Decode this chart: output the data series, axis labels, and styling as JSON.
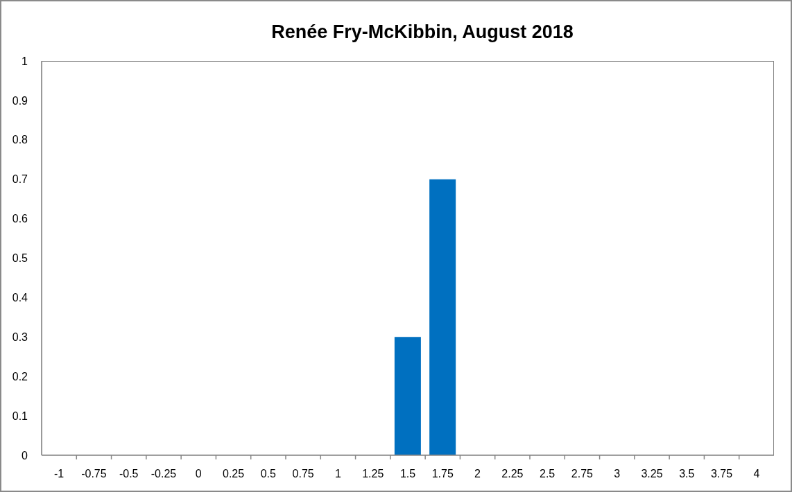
{
  "chart_data": {
    "type": "bar",
    "title": "Renée Fry-McKibbin, August 2018",
    "categories": [
      "-1",
      "-0.75",
      "-0.5",
      "-0.25",
      "0",
      "0.25",
      "0.5",
      "0.75",
      "1",
      "1.25",
      "1.5",
      "1.75",
      "2",
      "2.25",
      "2.5",
      "2.75",
      "3",
      "3.25",
      "3.5",
      "3.75",
      "4"
    ],
    "values": [
      0,
      0,
      0,
      0,
      0,
      0,
      0,
      0,
      0,
      0,
      0.3,
      0.7,
      0,
      0,
      0,
      0,
      0,
      0,
      0,
      0,
      0
    ],
    "color": "#0070c0",
    "ylim": [
      0,
      1
    ],
    "yticks": [
      0,
      0.1,
      0.2,
      0.3,
      0.4,
      0.5,
      0.6,
      0.7,
      0.8,
      0.9,
      1
    ]
  }
}
